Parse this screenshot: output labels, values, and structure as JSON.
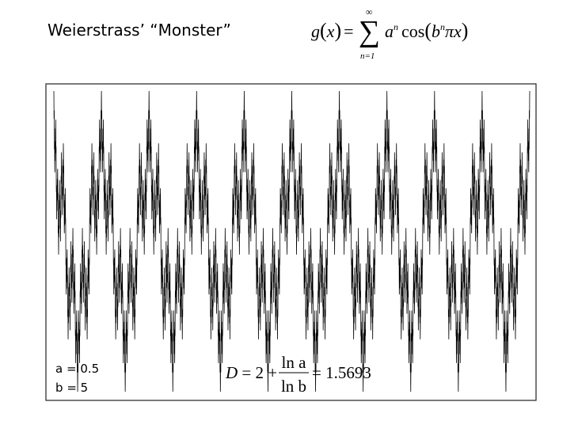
{
  "title": "Weierstrass’ “Monster”",
  "formula": {
    "lhs": "g",
    "open": "(",
    "var": "x",
    "close": ")",
    "equals": "=",
    "sum": "∑",
    "upper": "∞",
    "lower": "n=1",
    "base": "a",
    "exp": "n",
    "cos": "cos",
    "open2": "(",
    "base2": "b",
    "exp2": "n",
    "pi": "π",
    "var2": "x",
    "close2": ")"
  },
  "parameters": [
    {
      "symbol": "a",
      "equals": "=",
      "value": 0.5
    },
    {
      "symbol": "b",
      "equals": "=",
      "value": 5
    }
  ],
  "dimension": {
    "lhs": "D",
    "equals": "=",
    "two": "2",
    "plus": "+",
    "num": "ln a",
    "den": "ln b",
    "equals2": "=",
    "result": "1.5693"
  }
}
